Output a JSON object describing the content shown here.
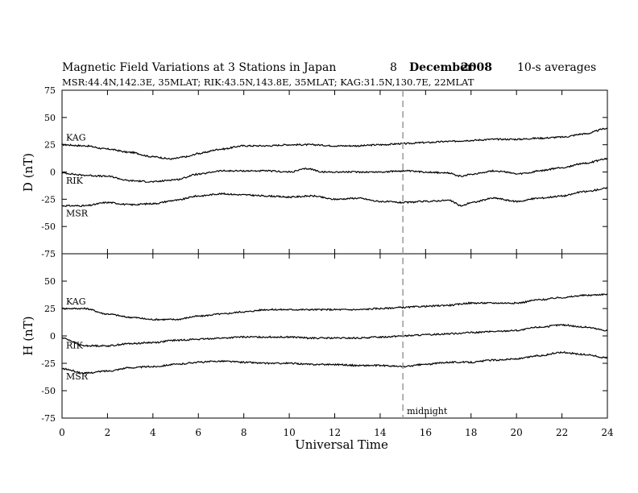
{
  "header": {
    "title": "Magnetic Field Variations at 3 Stations in Japan",
    "day": "8",
    "month": "December",
    "year": "2008",
    "averaging": "10-s averages",
    "stations_line": "MSR:44.4N,142.3E, 35MLAT;   RIK:43.5N,143.8E, 35MLAT;   KAG:31.5N,130.7E, 22MLAT"
  },
  "chart_data": [
    {
      "type": "line",
      "id": "D",
      "ylabel": "D (nT)",
      "xlabel": "",
      "xlim": [
        0,
        24
      ],
      "ylim": [
        -75,
        75
      ],
      "yticks": [
        75,
        50,
        25,
        0,
        -25,
        -50,
        -75
      ],
      "xticks": [
        0,
        2,
        4,
        6,
        8,
        10,
        12,
        14,
        16,
        18,
        20,
        22,
        24
      ],
      "series": [
        {
          "name": "KAG",
          "x": [
            0,
            1,
            2,
            3,
            4,
            4.8,
            5.5,
            6,
            7,
            8,
            9,
            10,
            11,
            12,
            13,
            14,
            15,
            16,
            17,
            18,
            19,
            20,
            21,
            22,
            23,
            24
          ],
          "y": [
            25,
            24,
            21,
            18,
            14,
            12,
            14,
            17,
            21,
            24,
            24,
            25,
            25,
            24,
            24,
            25,
            26,
            27,
            28,
            29,
            30,
            30,
            31,
            32,
            35,
            40
          ]
        },
        {
          "name": "RIK",
          "x": [
            0,
            1,
            2,
            3,
            4,
            5,
            6,
            7,
            8,
            9,
            10,
            10.8,
            11.5,
            12,
            13,
            14,
            15,
            16,
            17,
            17.6,
            18,
            19,
            19.6,
            20,
            20.5,
            21,
            22,
            23,
            24
          ],
          "y": [
            -1,
            -3,
            -4,
            -8,
            -9,
            -7,
            -2,
            1,
            1,
            1,
            0,
            3,
            0,
            0,
            0,
            0,
            1,
            0,
            -1,
            -4,
            -2,
            1,
            0,
            -2,
            -1,
            1,
            4,
            8,
            12
          ]
        },
        {
          "name": "MSR",
          "x": [
            0,
            1,
            2,
            3,
            4,
            5,
            6,
            7,
            8,
            9,
            10,
            11,
            12,
            13,
            14,
            15,
            16,
            17,
            17.6,
            18,
            19,
            20,
            21,
            22,
            23,
            24
          ],
          "y": [
            -31,
            -31,
            -28,
            -30,
            -29,
            -26,
            -22,
            -20,
            -21,
            -22,
            -23,
            -22,
            -25,
            -24,
            -27,
            -28,
            -27,
            -26,
            -31,
            -28,
            -24,
            -27,
            -24,
            -22,
            -18,
            -15
          ]
        }
      ]
    },
    {
      "type": "line",
      "id": "H",
      "ylabel": "H (nT)",
      "xlabel": "Universal Time",
      "xlim": [
        0,
        24
      ],
      "ylim": [
        -75,
        75
      ],
      "yticks": [
        50,
        25,
        0,
        -25,
        -50,
        -75
      ],
      "xticks": [
        0,
        2,
        4,
        6,
        8,
        10,
        12,
        14,
        16,
        18,
        20,
        22,
        24
      ],
      "series": [
        {
          "name": "KAG",
          "x": [
            0,
            1,
            2,
            3,
            4,
            5,
            6,
            7,
            8,
            9,
            10,
            11,
            12,
            13,
            14,
            15,
            16,
            17,
            18,
            19,
            20,
            21,
            22,
            23,
            24
          ],
          "y": [
            25,
            25,
            20,
            17,
            15,
            15,
            18,
            20,
            22,
            24,
            24,
            24,
            24,
            24,
            25,
            26,
            27,
            28,
            30,
            30,
            30,
            33,
            35,
            37,
            38
          ]
        },
        {
          "name": "RIK",
          "x": [
            0,
            1,
            2,
            3,
            4,
            5,
            6,
            7,
            8,
            9,
            10,
            11,
            12,
            13,
            14,
            15,
            16,
            17,
            18,
            19,
            20,
            21,
            22,
            23,
            24
          ],
          "y": [
            -2,
            -9,
            -9,
            -7,
            -6,
            -4,
            -3,
            -2,
            -1,
            -1,
            -1,
            -2,
            -2,
            -2,
            -1,
            0,
            1,
            2,
            3,
            4,
            5,
            8,
            10,
            8,
            5
          ]
        },
        {
          "name": "MSR",
          "x": [
            0,
            1,
            2,
            3,
            4,
            5,
            6,
            7,
            8,
            9,
            10,
            11,
            12,
            13,
            14,
            15,
            16,
            17,
            18,
            19,
            20,
            21,
            22,
            23,
            24
          ],
          "y": [
            -30,
            -34,
            -32,
            -29,
            -28,
            -26,
            -24,
            -23,
            -24,
            -25,
            -25,
            -26,
            -26,
            -27,
            -27,
            -28,
            -26,
            -24,
            -24,
            -22,
            -21,
            -18,
            -15,
            -17,
            -20
          ]
        }
      ]
    }
  ],
  "annotation": {
    "marker_x": 15,
    "label": "midnight"
  }
}
